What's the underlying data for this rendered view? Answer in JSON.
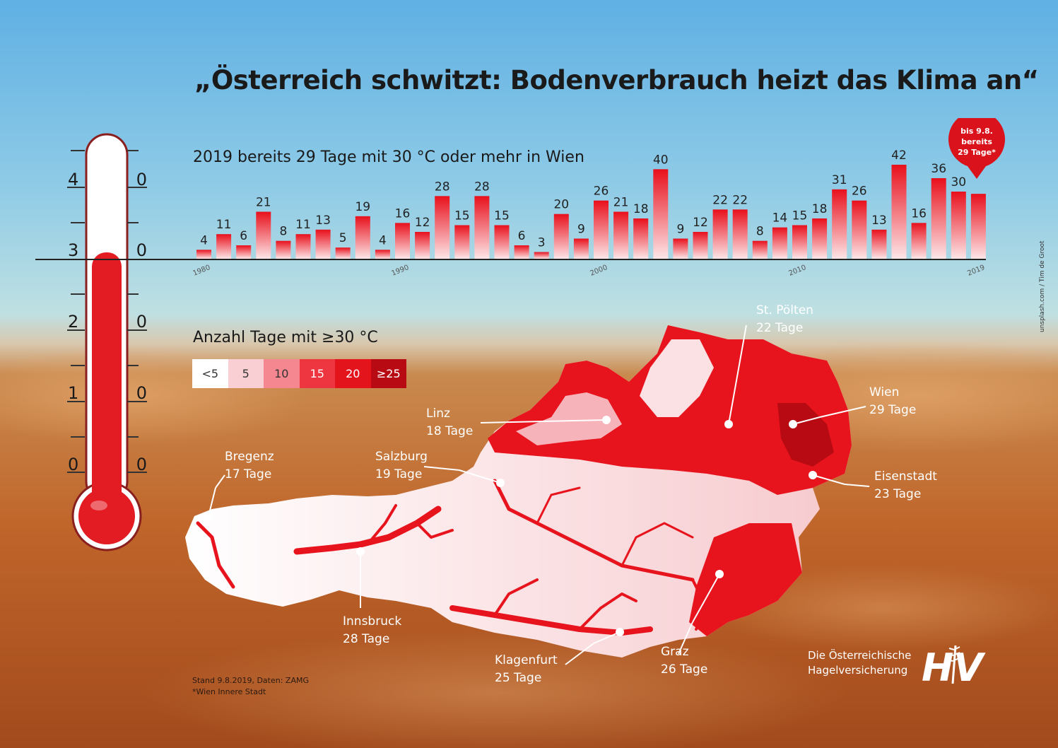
{
  "title": "„Österreich schwitzt: Bodenverbrauch heizt das Klima an“",
  "callout": {
    "lines": [
      "bis 9.8.",
      "bereits",
      "29 Tage*"
    ]
  },
  "chart_data": {
    "type": "bar",
    "title": "2019 bereits 29 Tage mit 30 °C oder mehr in Wien",
    "x": [
      1980,
      1981,
      1982,
      1983,
      1984,
      1985,
      1986,
      1987,
      1988,
      1989,
      1990,
      1991,
      1992,
      1993,
      1994,
      1995,
      1996,
      1997,
      1998,
      1999,
      2000,
      2001,
      2002,
      2003,
      2004,
      2005,
      2006,
      2007,
      2008,
      2009,
      2010,
      2011,
      2012,
      2013,
      2014,
      2015,
      2016,
      2017,
      2018,
      2019
    ],
    "values": [
      4,
      11,
      6,
      21,
      8,
      11,
      13,
      5,
      19,
      4,
      16,
      12,
      28,
      15,
      28,
      15,
      6,
      3,
      20,
      9,
      26,
      21,
      18,
      40,
      9,
      12,
      22,
      22,
      8,
      14,
      15,
      18,
      31,
      26,
      13,
      42,
      16,
      36,
      30,
      29
    ],
    "value_labels": [
      "4",
      "11",
      "6",
      "21",
      "8",
      "11",
      "13",
      "5",
      "19",
      "4",
      "16",
      "12",
      "28",
      "15",
      "28",
      "15",
      "6",
      "3",
      "20",
      "9",
      "26",
      "21",
      "18",
      "40",
      "9",
      "12",
      "22",
      "22",
      "8",
      "14",
      "15",
      "18",
      "31",
      "26",
      "13",
      "42",
      "16",
      "36",
      "30",
      ""
    ],
    "tick_labels": [
      "1980",
      "1990",
      "2000",
      "2010",
      "2019"
    ],
    "ylim": [
      0,
      42
    ],
    "colors": {
      "low": "#fde6e8",
      "high": "#e8101c"
    }
  },
  "thermometer": {
    "scale_labels": [
      "4 0",
      "3 0",
      "2 0",
      "1 0",
      "0 0"
    ]
  },
  "legend": {
    "title": "Anzahl Tage mit ≥30 °C",
    "items": [
      {
        "label": "<5",
        "color": "#ffffff",
        "text": "#333333"
      },
      {
        "label": "5",
        "color": "#f9cfd3",
        "text": "#333333"
      },
      {
        "label": "10",
        "color": "#f4878f",
        "text": "#333333"
      },
      {
        "label": "15",
        "color": "#ee3640",
        "text": "#ffffff"
      },
      {
        "label": "20",
        "color": "#e4141d",
        "text": "#ffffff"
      },
      {
        "label": "≥25",
        "color": "#b80a12",
        "text": "#ffffff"
      }
    ]
  },
  "cities": [
    {
      "name": "St. Pölten",
      "days": "22 Tage"
    },
    {
      "name": "Wien",
      "days": "29 Tage"
    },
    {
      "name": "Linz",
      "days": "18 Tage"
    },
    {
      "name": "Salzburg",
      "days": "19 Tage"
    },
    {
      "name": "Bregenz",
      "days": "17 Tage"
    },
    {
      "name": "Eisenstadt",
      "days": "23 Tage"
    },
    {
      "name": "Innsbruck",
      "days": "28 Tage"
    },
    {
      "name": "Graz",
      "days": "26 Tage"
    },
    {
      "name": "Klagenfurt",
      "days": "25 Tage"
    }
  ],
  "footnote": [
    "Stand 9.8.2019, Daten: ZAMG",
    "*Wien Innere Stadt"
  ],
  "logo": {
    "lines": [
      "Die Österreichische",
      "Hagelversicherung"
    ],
    "mark": "HV"
  },
  "credit": "unsplash.com / Tim de Groot"
}
